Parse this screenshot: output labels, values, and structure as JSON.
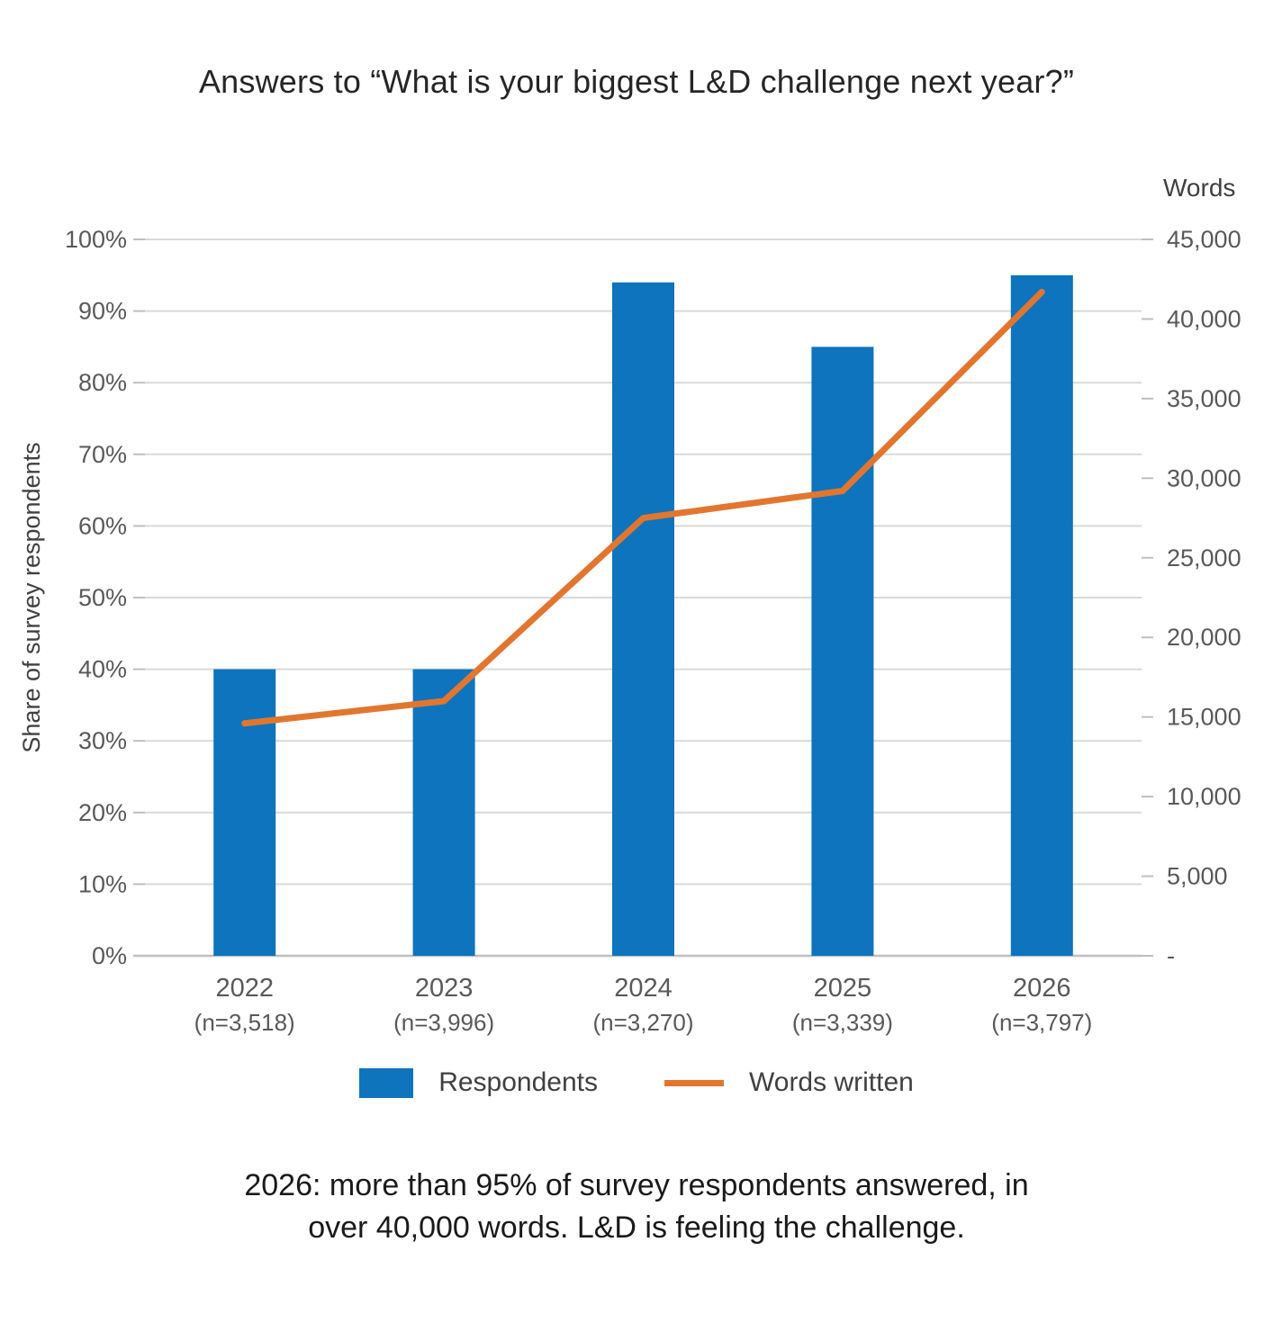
{
  "title": "Answers to “What is your biggest L&D challenge next year?”",
  "caption": {
    "line1": "2026: more than 95% of survey respondents answered, in",
    "line2": "over 40,000 words. L&D is feeling the challenge."
  },
  "legend": {
    "items": [
      {
        "label": "Respondents",
        "swatch": "bar-swatch",
        "color": "#0D74BD"
      },
      {
        "label": "Words written",
        "swatch": "line-swatch",
        "color": "#E2762F"
      }
    ],
    "position": "bottom"
  },
  "colors": {
    "bar": "#0D74BD",
    "line": "#E2762F",
    "gridline": "#D9D9D9",
    "axis_line": "#BFBFBF",
    "tick_text": "#595959",
    "axis_title_text": "#404040"
  },
  "chart_data": {
    "type": "bar",
    "subtype": "combo bar + line, dual axis",
    "categories": [
      "2022",
      "2023",
      "2024",
      "2025",
      "2026"
    ],
    "category_sublabels": [
      "(n=3,518)",
      "(n=3,996)",
      "(n=3,270)",
      "(n=3,339)",
      "(n=3,797)"
    ],
    "series": [
      {
        "name": "Respondents",
        "type": "bar",
        "axis": "left",
        "unit": "% of survey respondents",
        "values": [
          40,
          40,
          94,
          85,
          95
        ],
        "color": "#0D74BD"
      },
      {
        "name": "Words written",
        "type": "line",
        "axis": "right",
        "unit": "words",
        "values": [
          14600,
          16000,
          27500,
          29200,
          41700
        ],
        "color": "#E2762F"
      }
    ],
    "left_axis": {
      "title": "Share of survey respondents",
      "min": 0,
      "max": 100,
      "tick_step": 10,
      "tick_labels": [
        "0%",
        "10%",
        "20%",
        "30%",
        "40%",
        "50%",
        "60%",
        "70%",
        "80%",
        "90%",
        "100%"
      ]
    },
    "right_axis": {
      "title": "Words",
      "min": 0,
      "max": 45000,
      "tick_step": 5000,
      "zero_label": "-",
      "tick_labels": [
        "-",
        "5,000",
        "10,000",
        "15,000",
        "20,000",
        "25,000",
        "30,000",
        "35,000",
        "40,000",
        "45,000"
      ]
    },
    "grid": true,
    "legend_position": "bottom"
  }
}
